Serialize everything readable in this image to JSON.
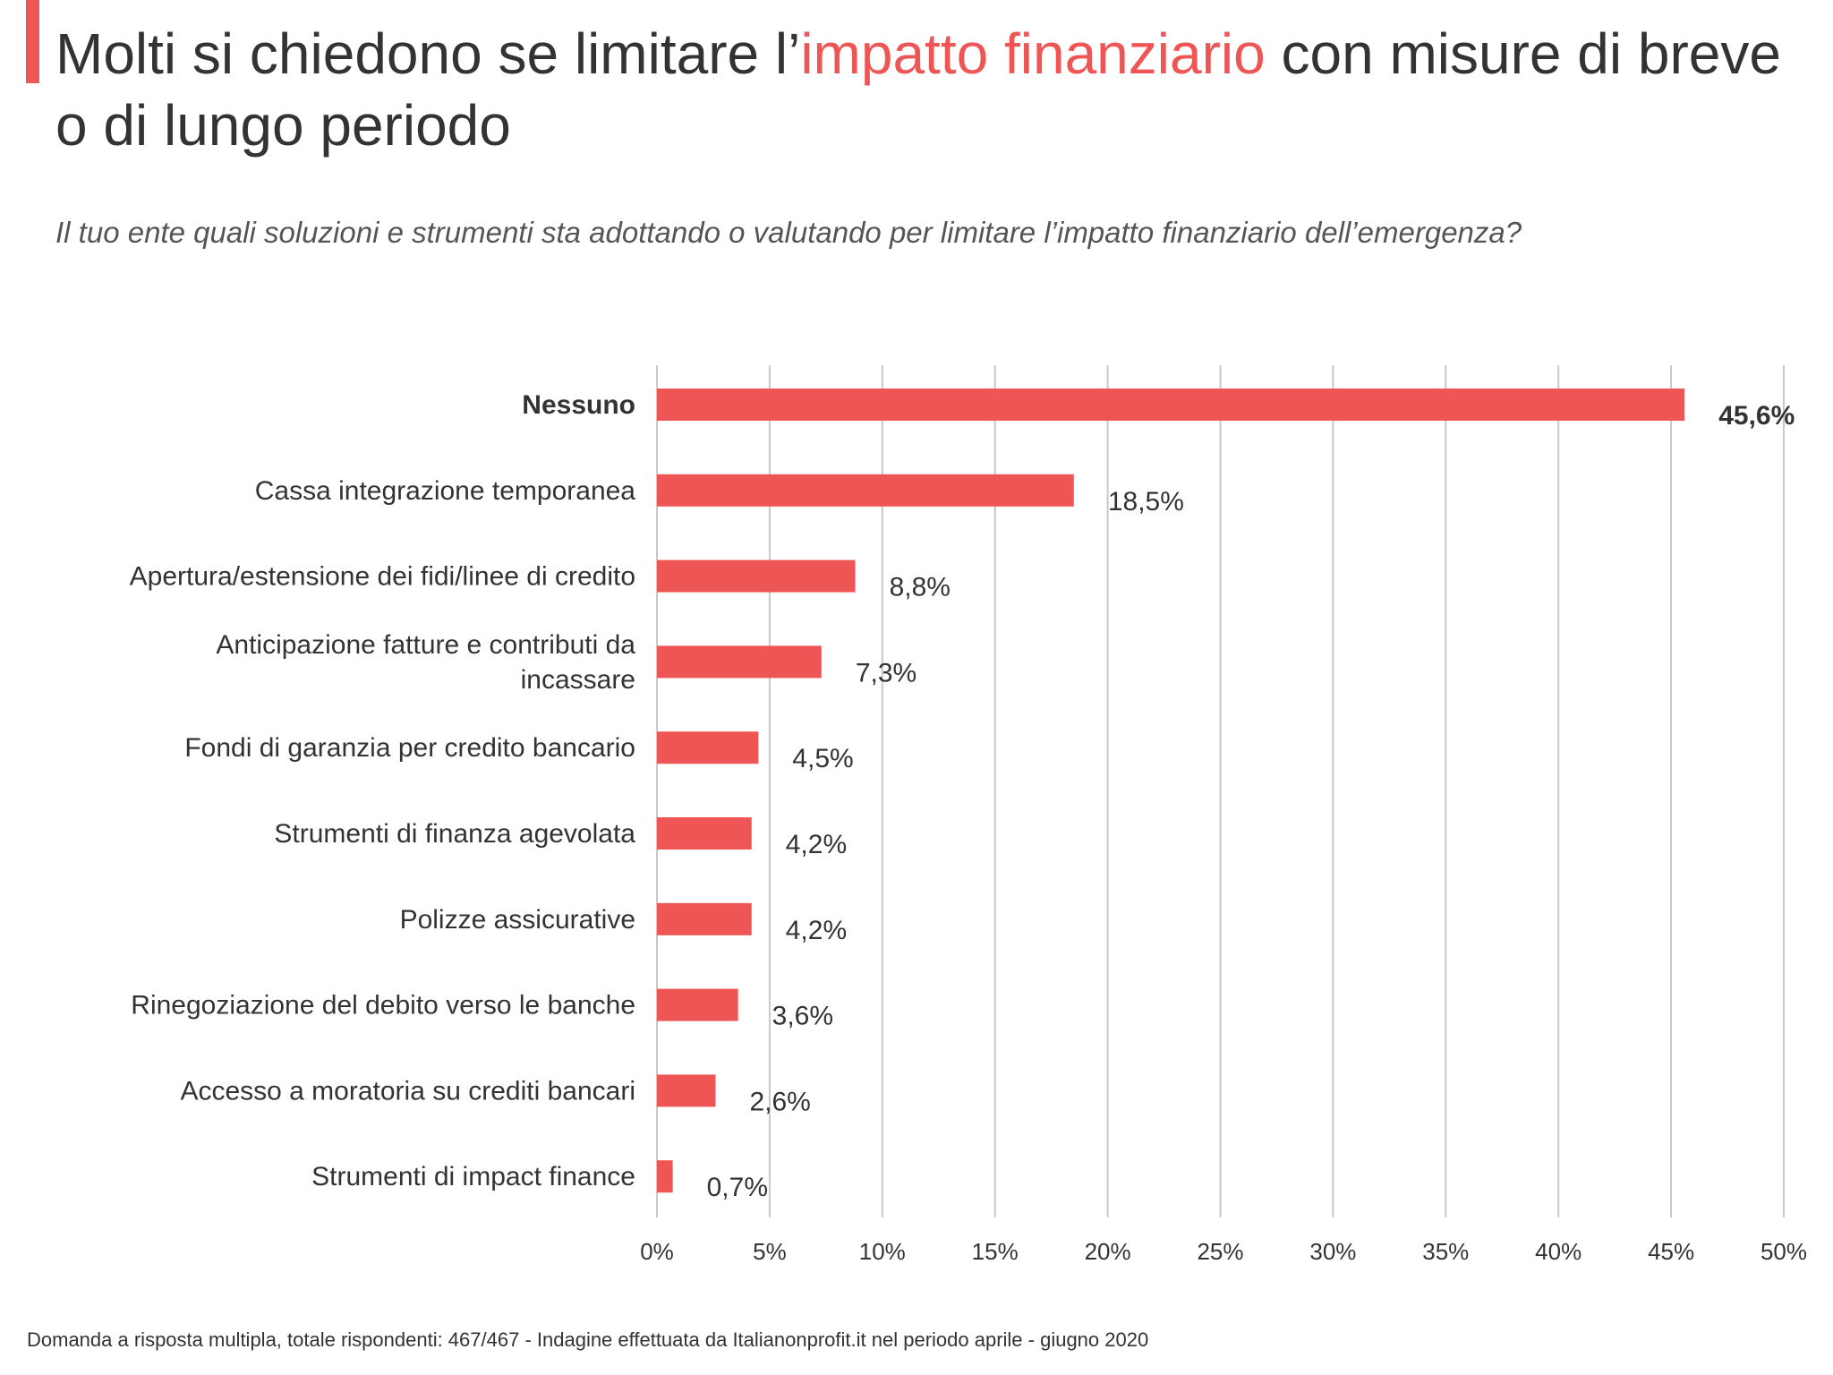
{
  "header": {
    "title_before": "Molti si chiedono se limitare l’",
    "title_highlight": "impatto finanziario",
    "title_after": " con misure di breve o di lungo periodo",
    "subtitle": "Il tuo ente quali soluzioni e strumenti sta adottando o valutando per limitare l’impatto finanziario dell’emergenza?"
  },
  "footnote": "Domanda a risposta multipla, totale rispondenti: 467/467 - Indagine effettuata da Italianonprofit.it nel periodo aprile - giugno 2020",
  "colors": {
    "accent": "#ee5656",
    "bar": "#ee5656",
    "grid": "#c8c8c8",
    "text": "#333333"
  },
  "chart_data": {
    "type": "bar",
    "orientation": "horizontal",
    "categories": [
      [
        "Nessuno"
      ],
      [
        "Cassa integrazione temporanea"
      ],
      [
        "Apertura/estensione dei fidi/linee di credito"
      ],
      [
        "Anticipazione fatture e contributi da",
        "incassare"
      ],
      [
        "Fondi di garanzia per credito bancario"
      ],
      [
        "Strumenti di finanza agevolata"
      ],
      [
        "Polizze assicurative"
      ],
      [
        "Rinegoziazione del debito verso le banche"
      ],
      [
        "Accesso a moratoria su crediti bancari"
      ],
      [
        "Strumenti di impact finance"
      ]
    ],
    "values": [
      45.6,
      18.5,
      8.8,
      7.3,
      4.5,
      4.2,
      4.2,
      3.6,
      2.6,
      0.7
    ],
    "value_labels": [
      "45,6%",
      "18,5%",
      "8,8%",
      "7,3%",
      "4,5%",
      "4,2%",
      "4,2%",
      "3,6%",
      "2,6%",
      "0,7%"
    ],
    "highlighted_index": 0,
    "xlim": [
      0,
      50
    ],
    "xticks": [
      0,
      5,
      10,
      15,
      20,
      25,
      30,
      35,
      40,
      45,
      50
    ],
    "xtick_labels": [
      "0%",
      "5%",
      "10%",
      "15%",
      "20%",
      "25%",
      "30%",
      "35%",
      "40%",
      "45%",
      "50%"
    ],
    "grid": true,
    "legend": "none"
  }
}
